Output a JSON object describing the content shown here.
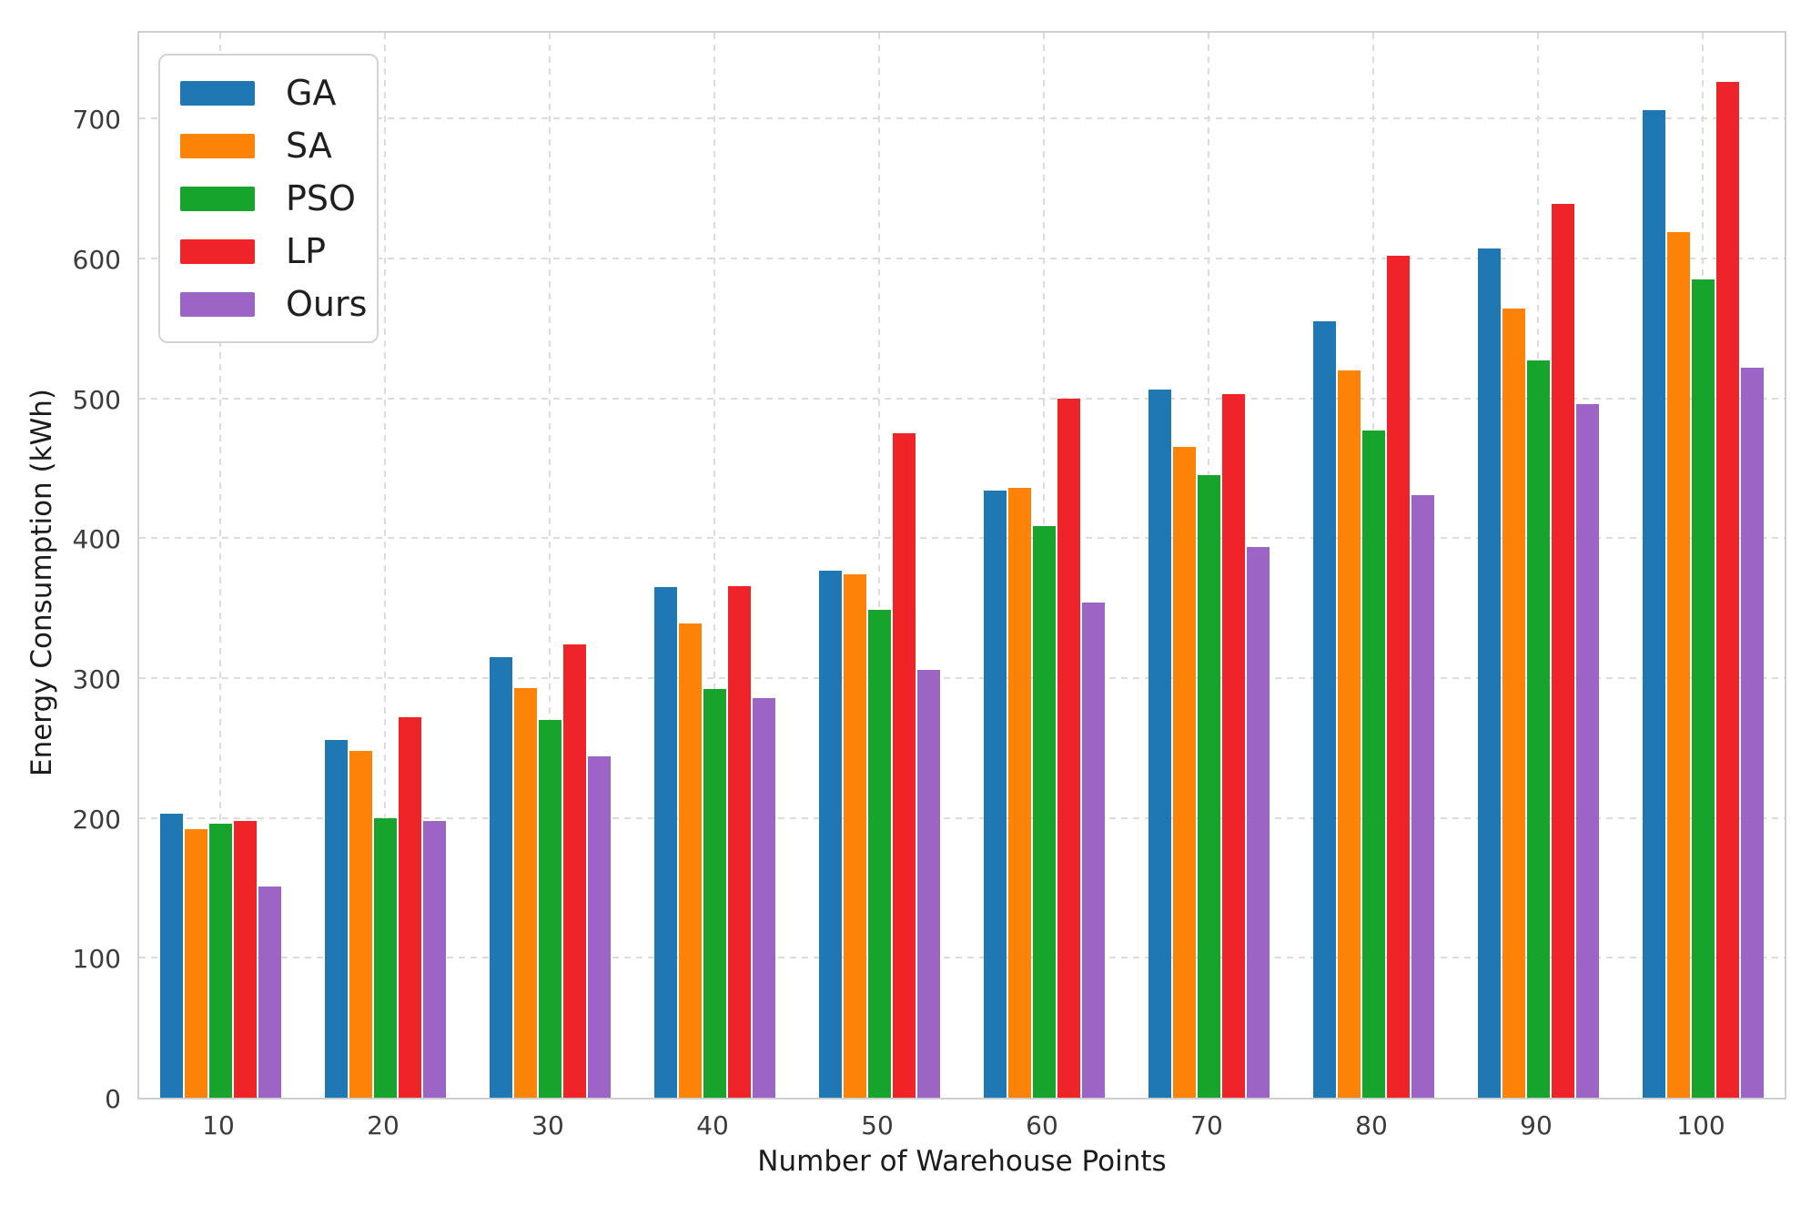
{
  "chart_data": {
    "type": "bar",
    "title": "",
    "xlabel": "Number of Warehouse Points",
    "ylabel": "Energy Consumption (kWh)",
    "categories": [
      "10",
      "20",
      "30",
      "40",
      "50",
      "60",
      "70",
      "80",
      "90",
      "100"
    ],
    "series": [
      {
        "name": "GA",
        "color": "#1f77b4",
        "values": [
          203,
          256,
          315,
          365,
          377,
          434,
          506,
          555,
          607,
          706
        ]
      },
      {
        "name": "SA",
        "color": "#fc8308",
        "values": [
          192,
          248,
          293,
          339,
          374,
          436,
          465,
          520,
          564,
          619
        ]
      },
      {
        "name": "PSO",
        "color": "#17a42c",
        "values": [
          196,
          200,
          270,
          292,
          349,
          409,
          445,
          477,
          527,
          585
        ]
      },
      {
        "name": "LP",
        "color": "#ee2428",
        "values": [
          198,
          272,
          324,
          366,
          475,
          500,
          503,
          602,
          639,
          726
        ]
      },
      {
        "name": "Ours",
        "color": "#9c64c5",
        "values": [
          151,
          198,
          244,
          286,
          306,
          354,
          394,
          431,
          496,
          522
        ]
      }
    ],
    "yticks": [
      0,
      100,
      200,
      300,
      400,
      500,
      600,
      700
    ],
    "ylim": [
      0,
      764
    ],
    "grid": "dashed-both-axes",
    "legend_position": "upper-left"
  }
}
